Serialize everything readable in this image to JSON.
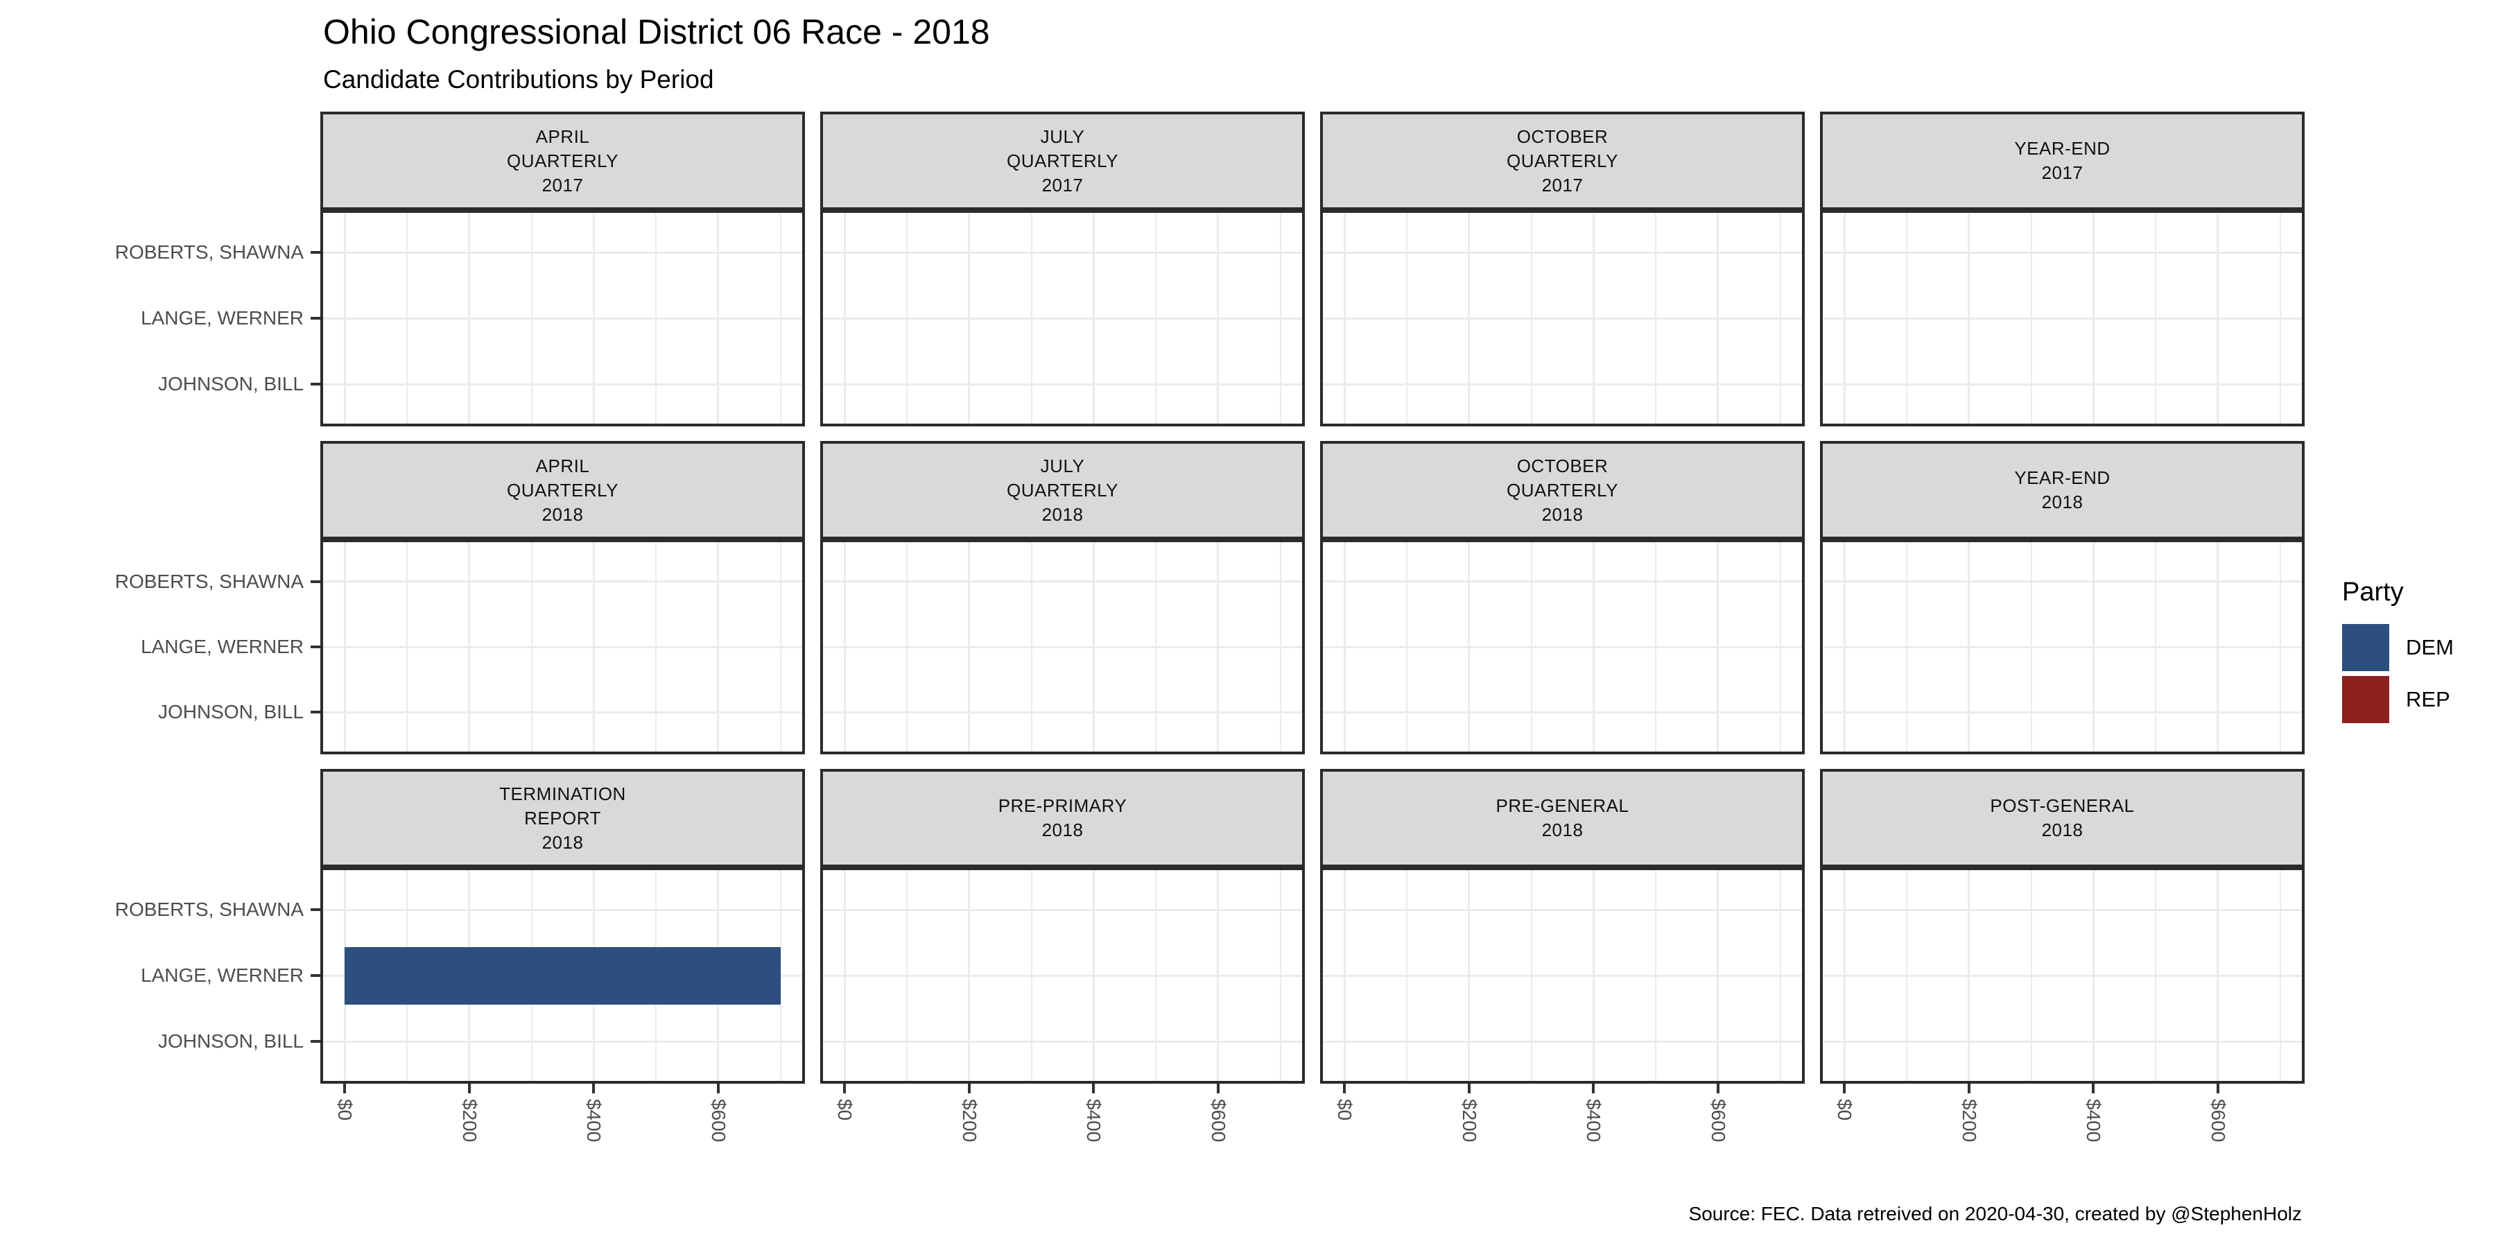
{
  "title": "Ohio Congressional District 06 Race - 2018",
  "subtitle": "Candidate Contributions by Period",
  "caption": "Source: FEC. Data retreived on 2020-04-30, created by @StephenHolz",
  "legend": {
    "title": "Party",
    "entries": [
      {
        "label": "DEM",
        "color": "#2d4f7e"
      },
      {
        "label": "REP",
        "color": "#8d1f1f"
      }
    ]
  },
  "colors": {
    "dem": "#2d4f7e",
    "rep": "#8d1f1f",
    "strip_bg": "#d9d9d9",
    "grid": "#ebebeb",
    "panel_border": "#2b2b2b",
    "axis_text": "#4d4d4d"
  },
  "chart_data": {
    "type": "bar",
    "orientation": "horizontal",
    "title": "Ohio Congressional District 06 Race - 2018",
    "subtitle": "Candidate Contributions by Period",
    "y_categories": [
      "ROBERTS, SHAWNA",
      "LANGE, WERNER",
      "JOHNSON, BILL"
    ],
    "x_tick_labels": [
      "$0",
      "$200",
      "$400",
      "$600"
    ],
    "x_major_values": [
      0,
      200,
      400,
      600
    ],
    "x_minor_values": [
      100,
      300,
      500,
      700
    ],
    "xlim": [
      -35,
      735
    ],
    "grid": true,
    "legend_position": "right",
    "facets": [
      {
        "title_lines": [
          "APRIL",
          "QUARTERLY",
          "2017"
        ],
        "bars": []
      },
      {
        "title_lines": [
          "JULY",
          "QUARTERLY",
          "2017"
        ],
        "bars": []
      },
      {
        "title_lines": [
          "OCTOBER",
          "QUARTERLY",
          "2017"
        ],
        "bars": []
      },
      {
        "title_lines": [
          "YEAR-END",
          "2017"
        ],
        "bars": []
      },
      {
        "title_lines": [
          "APRIL",
          "QUARTERLY",
          "2018"
        ],
        "bars": []
      },
      {
        "title_lines": [
          "JULY",
          "QUARTERLY",
          "2018"
        ],
        "bars": []
      },
      {
        "title_lines": [
          "OCTOBER",
          "QUARTERLY",
          "2018"
        ],
        "bars": []
      },
      {
        "title_lines": [
          "YEAR-END",
          "2018"
        ],
        "bars": []
      },
      {
        "title_lines": [
          "TERMINATION",
          "REPORT",
          "2018"
        ],
        "bars": [
          {
            "candidate": "LANGE, WERNER",
            "party": "DEM",
            "value": 700
          }
        ]
      },
      {
        "title_lines": [
          "PRE-PRIMARY",
          "2018"
        ],
        "bars": []
      },
      {
        "title_lines": [
          "PRE-GENERAL",
          "2018"
        ],
        "bars": []
      },
      {
        "title_lines": [
          "POST-GENERAL",
          "2018"
        ],
        "bars": []
      }
    ]
  }
}
